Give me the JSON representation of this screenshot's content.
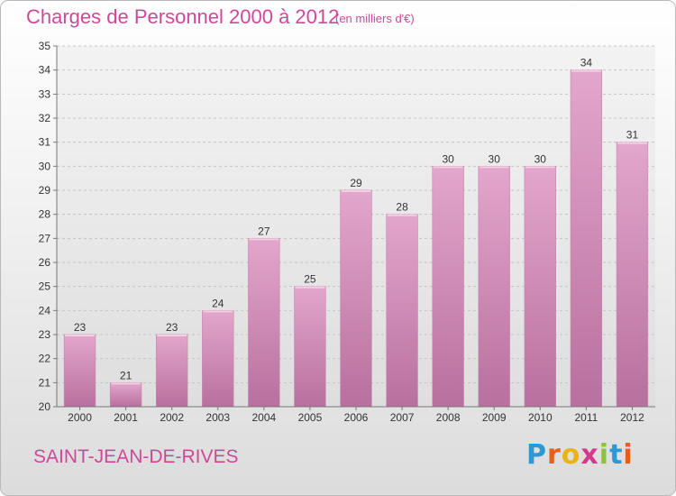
{
  "header": {
    "title": "Charges de Personnel 2000 à 2012",
    "subtitle": "(en milliers d'€)"
  },
  "footer": {
    "commune": "SAINT-JEAN-DE-RIVES",
    "logo_letters": [
      "P",
      "r",
      "o",
      "x",
      "i",
      "t",
      "i"
    ],
    "logo_colors": [
      "#2a9ad6",
      "#e85f1c",
      "#e8b414",
      "#d33a8d",
      "#8ec23b",
      "#2a9ad6",
      "#e85f1c"
    ]
  },
  "chart_data": {
    "type": "bar",
    "title": "Charges de Personnel 2000 à 2012",
    "subtitle": "(en milliers d'€)",
    "categories": [
      "2000",
      "2001",
      "2002",
      "2003",
      "2004",
      "2005",
      "2006",
      "2007",
      "2008",
      "2009",
      "2010",
      "2011",
      "2012"
    ],
    "values": [
      23,
      21,
      23,
      24,
      27,
      25,
      29,
      28,
      30,
      30,
      30,
      34,
      31
    ],
    "ylim": [
      20,
      35
    ],
    "yticks": [
      20,
      21,
      22,
      23,
      24,
      25,
      26,
      27,
      28,
      29,
      30,
      31,
      32,
      33,
      34,
      35
    ],
    "grid": true,
    "bar_color": "#d98ab8"
  }
}
